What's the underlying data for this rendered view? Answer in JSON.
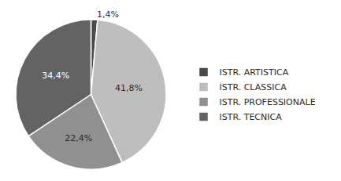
{
  "chart_data": {
    "type": "pie",
    "categories": [
      "ISTR. ARTISTICA",
      "ISTR. CLASSICA",
      "ISTR. PROFESSIONALE",
      "ISTR. TECNICA"
    ],
    "values": [
      1.4,
      41.8,
      22.4,
      34.4
    ],
    "value_labels": [
      "1,4%",
      "41,8%",
      "22,4%",
      "34,4%"
    ],
    "colors": [
      "#4a4a4a",
      "#bebebe",
      "#909090",
      "#636363"
    ],
    "data_labels": true,
    "legend": "right"
  }
}
